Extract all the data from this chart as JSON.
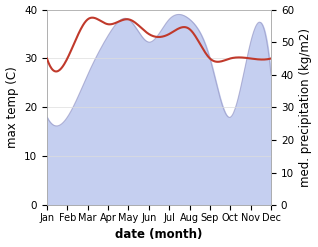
{
  "months": [
    "Jan",
    "Feb",
    "Mar",
    "Apr",
    "May",
    "Jun",
    "Jul",
    "Aug",
    "Sep",
    "Oct",
    "Nov",
    "Dec"
  ],
  "temperature": [
    30,
    30,
    38,
    37,
    38,
    35,
    35,
    36,
    30,
    30,
    30,
    30
  ],
  "precipitation": [
    27,
    27,
    40,
    52,
    57,
    50,
    57,
    57,
    45,
    27,
    50,
    40
  ],
  "temp_color": "#c0392b",
  "precip_fill_color": "#c5cff0",
  "precip_line_color": "#9090c0",
  "temp_ylim": [
    0,
    40
  ],
  "precip_ylim": [
    0,
    60
  ],
  "temp_yticks": [
    0,
    10,
    20,
    30,
    40
  ],
  "precip_yticks": [
    0,
    10,
    20,
    30,
    40,
    50,
    60
  ],
  "xlabel": "date (month)",
  "ylabel_left": "max temp (C)",
  "ylabel_right": "med. precipitation (kg/m2)",
  "bg_color": "#ffffff",
  "label_fontsize": 8.5
}
